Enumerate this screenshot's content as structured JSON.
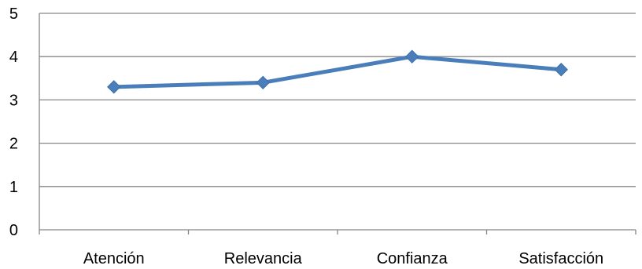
{
  "chart_data": {
    "type": "line",
    "title": "",
    "xlabel": "",
    "ylabel": "",
    "categories": [
      "Atención",
      "Relevancia",
      "Confianza",
      "Satisfacción"
    ],
    "series": [
      {
        "values": [
          3.3,
          3.4,
          4.0,
          3.7
        ],
        "color": "#4a7ebb"
      }
    ],
    "ylim": [
      0,
      5
    ],
    "yticks": [
      0,
      1,
      2,
      3,
      4,
      5
    ],
    "grid": true,
    "legend": "none",
    "marker": "diamond"
  }
}
